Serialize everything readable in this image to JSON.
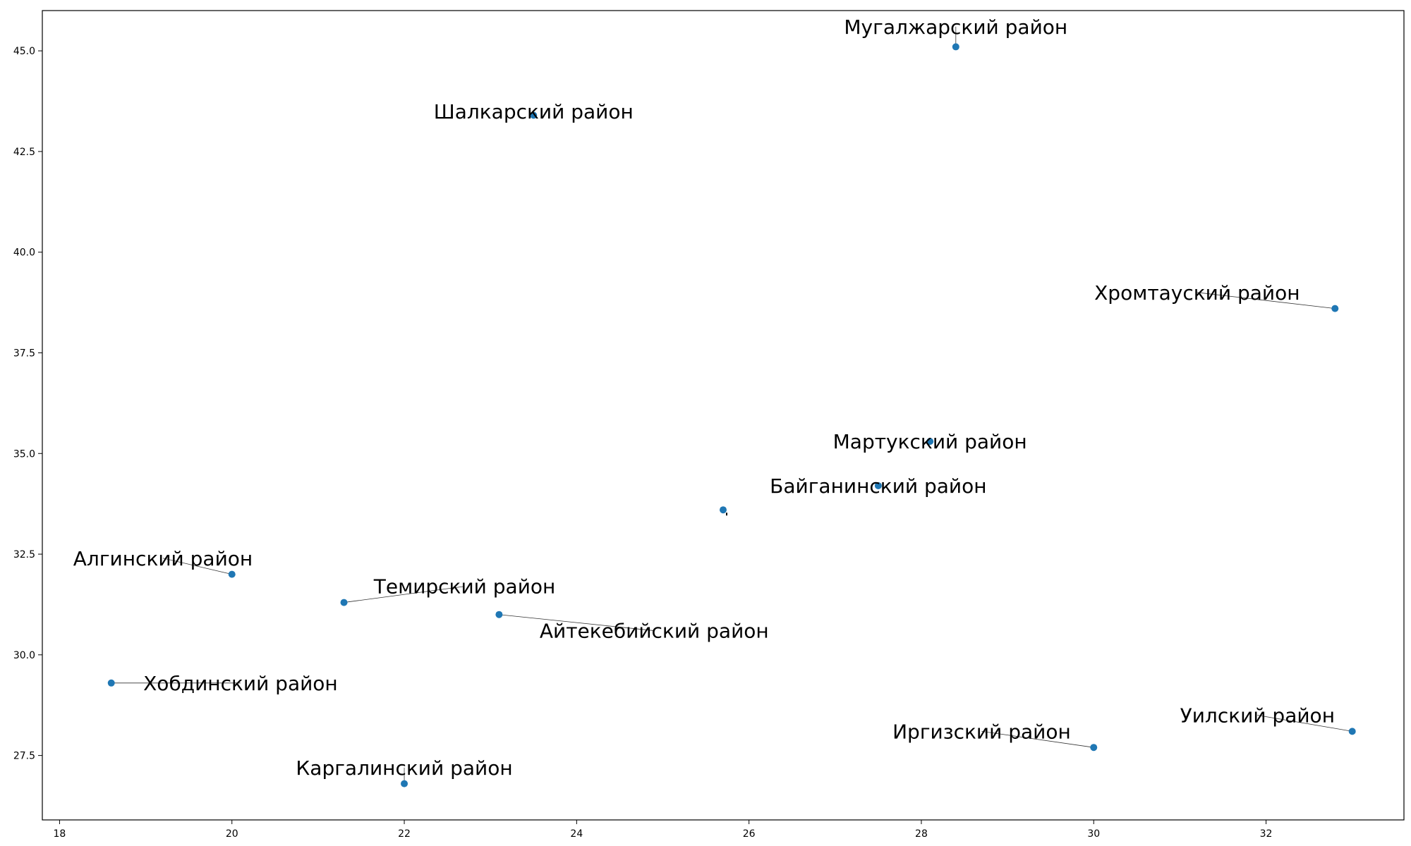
{
  "chart_data": {
    "type": "scatter",
    "title": "",
    "xlabel": "",
    "ylabel": "",
    "xlim": [
      17.8,
      33.6
    ],
    "ylim": [
      25.9,
      46.0
    ],
    "grid": false,
    "point_color": "#1f77b4",
    "x_ticks": [
      18,
      20,
      22,
      24,
      26,
      28,
      30,
      32
    ],
    "y_ticks": [
      27.5,
      30.0,
      32.5,
      35.0,
      37.5,
      40.0,
      42.5,
      45.0
    ],
    "points": [
      {
        "label": "Мугалжарский район",
        "x": 28.4,
        "y": 45.1,
        "label_x": 28.4,
        "label_y": 45.6
      },
      {
        "label": "Шалкарский район",
        "x": 23.5,
        "y": 43.4,
        "label_x": 23.5,
        "label_y": 43.5
      },
      {
        "label": "Хромтауский район",
        "x": 32.8,
        "y": 38.6,
        "label_x": 31.2,
        "label_y": 39.0
      },
      {
        "label": "Мартукский район",
        "x": 28.1,
        "y": 35.3,
        "label_x": 28.1,
        "label_y": 35.3
      },
      {
        "label": "Байганинский район",
        "x": 27.5,
        "y": 34.2,
        "label_x": 27.5,
        "label_y": 34.2
      },
      {
        "label": "",
        "x": 25.7,
        "y": 33.6,
        "label_x": 25.7,
        "label_y": 33.6
      },
      {
        "label": "Алгинский район",
        "x": 20.0,
        "y": 32.0,
        "label_x": 19.2,
        "label_y": 32.4
      },
      {
        "label": "Темирский район",
        "x": 21.3,
        "y": 31.3,
        "label_x": 22.7,
        "label_y": 31.7
      },
      {
        "label": "Айтекебийский район",
        "x": 23.1,
        "y": 31.0,
        "label_x": 24.9,
        "label_y": 30.6
      },
      {
        "label": "Хобдинский район",
        "x": 18.6,
        "y": 29.3,
        "label_x": 20.1,
        "label_y": 29.3
      },
      {
        "label": "Уилский район",
        "x": 33.0,
        "y": 28.1,
        "label_x": 31.9,
        "label_y": 28.5
      },
      {
        "label": "Иргизский район",
        "x": 30.0,
        "y": 27.7,
        "label_x": 28.7,
        "label_y": 28.1
      },
      {
        "label": "Каргалинский район",
        "x": 22.0,
        "y": 26.8,
        "label_x": 22.0,
        "label_y": 27.2
      }
    ]
  }
}
